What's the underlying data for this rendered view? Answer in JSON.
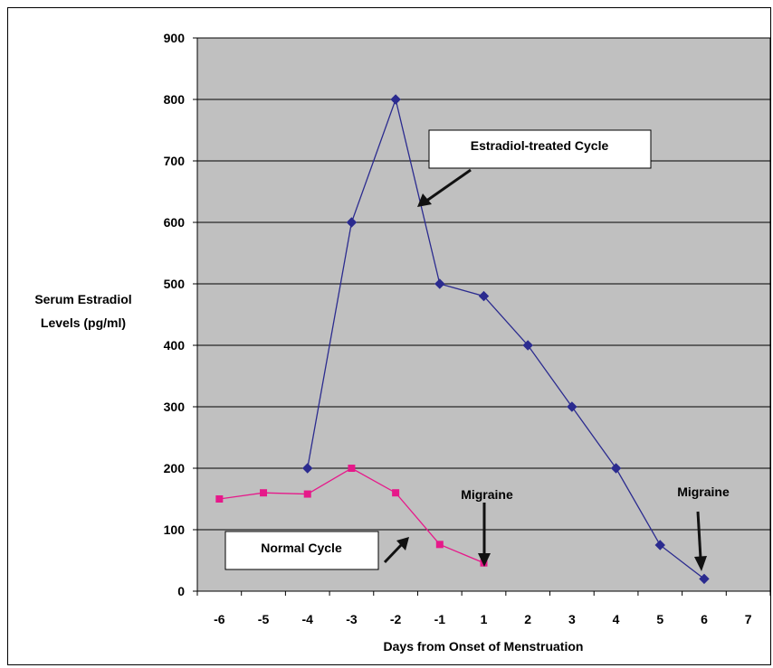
{
  "chart_data": {
    "type": "line",
    "xlabel": "Days from Onset of Menstruation",
    "ylabel_lines": [
      "Serum Estradiol",
      "Levels (pg/ml)"
    ],
    "x_ticks": [
      "-6",
      "-5",
      "-4",
      "-3",
      "-2",
      "-1",
      "1",
      "2",
      "3",
      "4",
      "5",
      "6",
      "7"
    ],
    "y_ticks": [
      "0",
      "100",
      "200",
      "300",
      "400",
      "500",
      "600",
      "700",
      "800",
      "900"
    ],
    "ylim": [
      0,
      900
    ],
    "grid": true,
    "series": [
      {
        "name": "Estradiol-treated Cycle",
        "color": "#2b2b8f",
        "marker": "diamond",
        "x": [
          "-4",
          "-3",
          "-2",
          "-1",
          "1",
          "2",
          "3",
          "4",
          "5",
          "6"
        ],
        "values": [
          200,
          600,
          800,
          500,
          480,
          400,
          300,
          200,
          75,
          20
        ]
      },
      {
        "name": "Normal Cycle",
        "color": "#e6198a",
        "marker": "square",
        "x": [
          "-6",
          "-5",
          "-4",
          "-3",
          "-2",
          "-1",
          "1"
        ],
        "values": [
          150,
          160,
          158,
          200,
          160,
          76,
          46
        ]
      }
    ],
    "annotations": [
      {
        "text": "Migraine",
        "points_to_x": "1",
        "points_to_y": 46
      },
      {
        "text": "Migraine",
        "points_to_x": "6",
        "points_to_y": 20
      }
    ],
    "colors": {
      "plot_background": "#c0c0c0",
      "gridline": "#000000",
      "arrow": "#111111"
    }
  }
}
